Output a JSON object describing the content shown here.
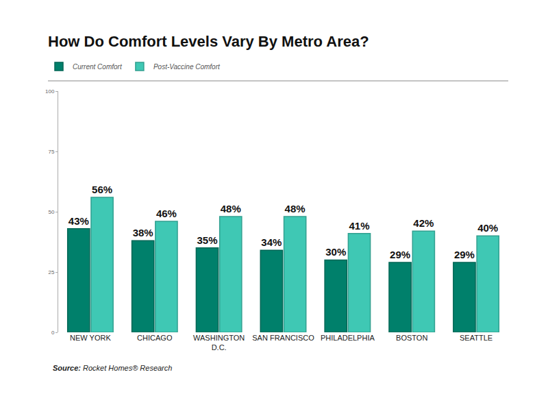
{
  "chart_data": {
    "type": "bar",
    "title": "How Do Comfort Levels Vary By Metro Area?",
    "categories": [
      "NEW YORK",
      "CHICAGO",
      "WASHINGTON D.C.",
      "SAN FRANCISCO",
      "PHILADELPHIA",
      "BOSTON",
      "SEATTLE"
    ],
    "series": [
      {
        "name": "Current Comfort",
        "color": "#00806b",
        "values": [
          43,
          38,
          35,
          34,
          30,
          29,
          29
        ],
        "value_labels": [
          "43%",
          "38%",
          "35%",
          "34%",
          "30%",
          "29%",
          "29%"
        ]
      },
      {
        "name": "Post-Vaccine Comfort",
        "color": "#3fc8b4",
        "values": [
          56,
          46,
          48,
          48,
          41,
          42,
          40
        ],
        "value_labels": [
          "56%",
          "46%",
          "48%",
          "48%",
          "41%",
          "42%",
          "40%"
        ]
      }
    ],
    "ylim": [
      0,
      100
    ],
    "yticks": [
      0,
      25,
      50,
      75,
      100
    ],
    "grid": false,
    "legend": "top left",
    "data_labels": true,
    "annotations": [
      "Source: Rocket Homes® Research"
    ]
  }
}
